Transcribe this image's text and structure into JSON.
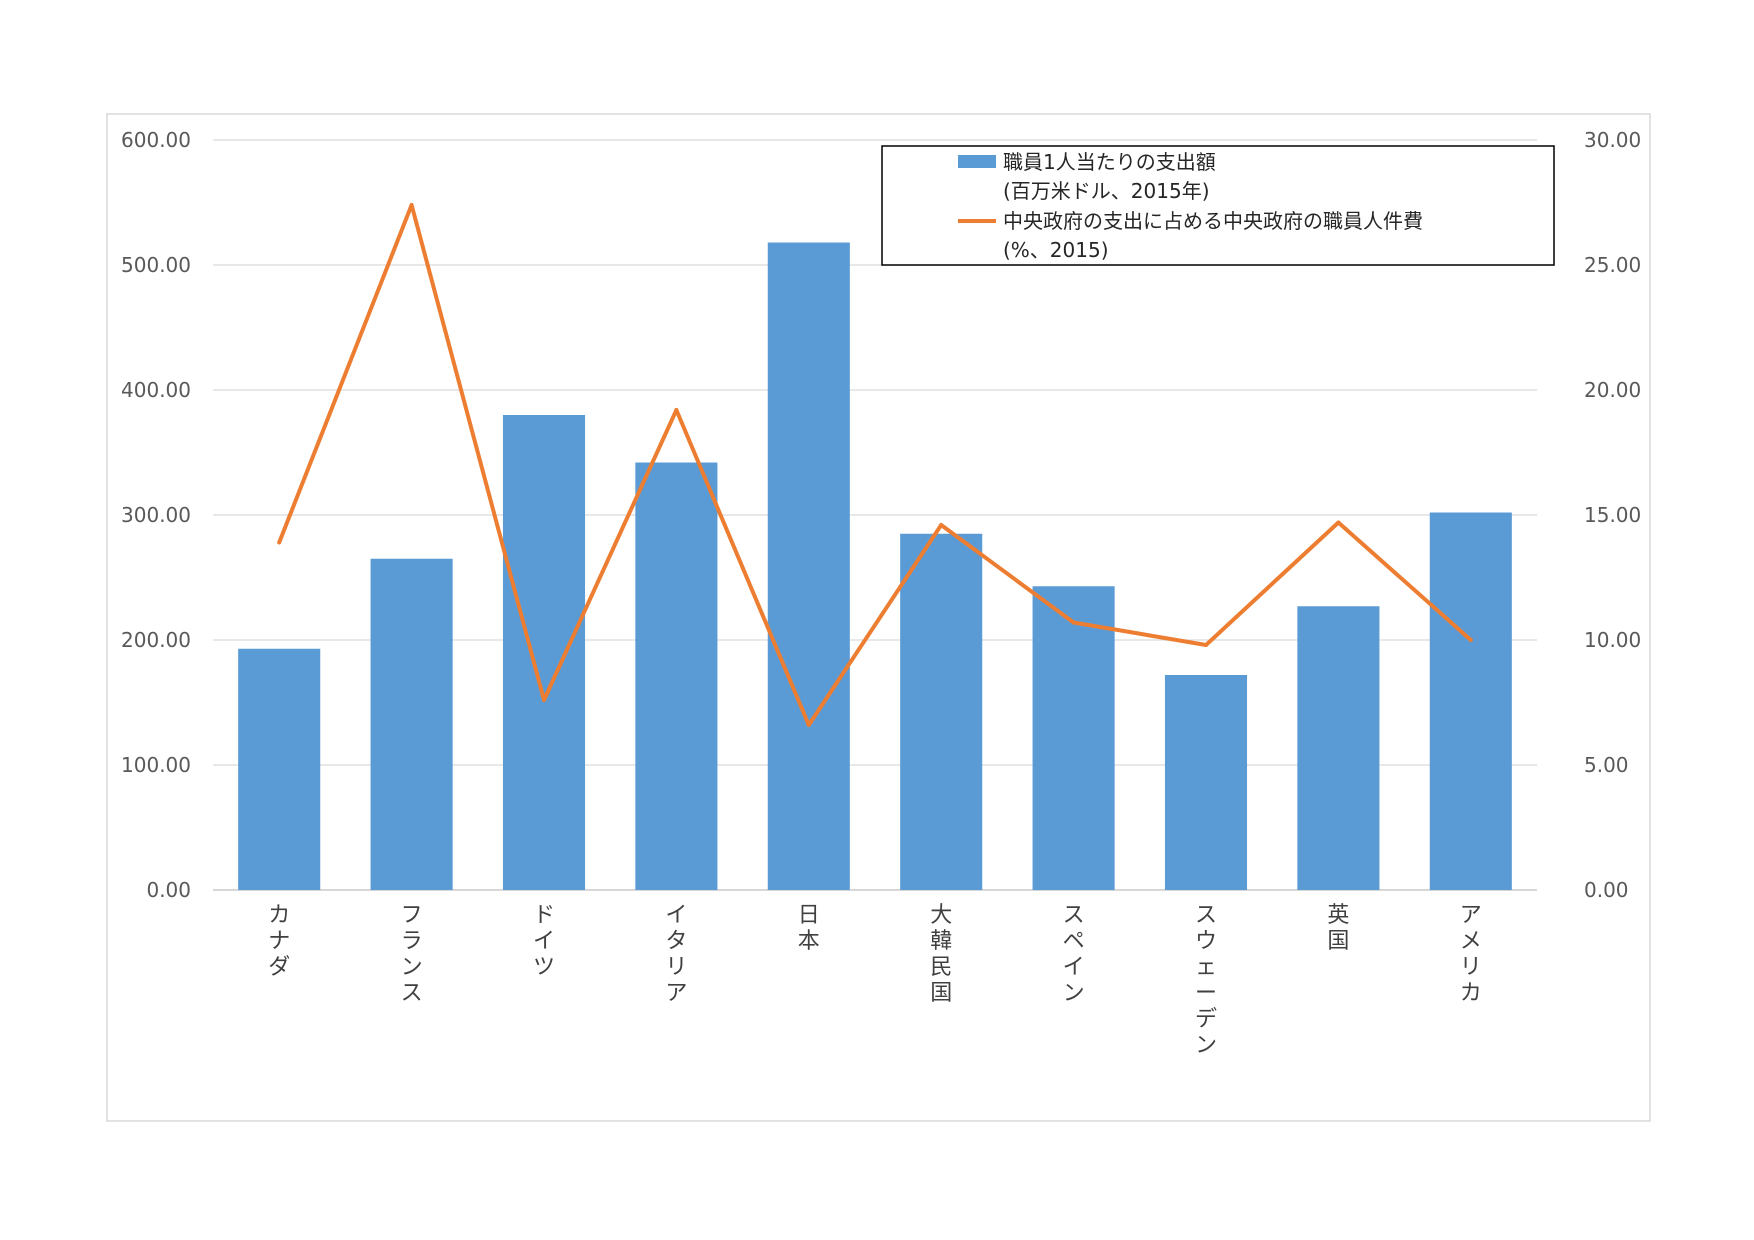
{
  "chart_data": {
    "type": "bar",
    "title": "",
    "categories": [
      "カナダ",
      "フランス",
      "ドイツ",
      "イタリア",
      "日本",
      "大韓民国",
      "スペイン",
      "スウェーデン",
      "英国",
      "アメリカ"
    ],
    "series": [
      {
        "name_lines": [
          "職員1人当たりの支出額",
          "(百万米ドル、2015年)"
        ],
        "type": "bar",
        "axis": "left",
        "color": "#5B9BD5",
        "values": [
          193,
          265,
          380,
          342,
          518,
          285,
          243,
          172,
          227,
          302
        ]
      },
      {
        "name_lines": [
          "中央政府の支出に占める中央政府の職員人件費",
          "(%、2015)"
        ],
        "type": "line",
        "axis": "right",
        "color": "#ED7D31",
        "values": [
          13.9,
          27.4,
          7.6,
          19.2,
          6.6,
          14.6,
          10.7,
          9.8,
          14.7,
          10.0
        ]
      }
    ],
    "y_left": {
      "min": 0,
      "max": 600,
      "ticks": [
        "0.00",
        "100.00",
        "200.00",
        "300.00",
        "400.00",
        "500.00",
        "600.00"
      ]
    },
    "y_right": {
      "min": 0,
      "max": 30,
      "ticks": [
        "0.00",
        "5.00",
        "10.00",
        "15.00",
        "20.00",
        "25.00",
        "30.00"
      ]
    },
    "grid": true,
    "legend_position": "top-right"
  }
}
